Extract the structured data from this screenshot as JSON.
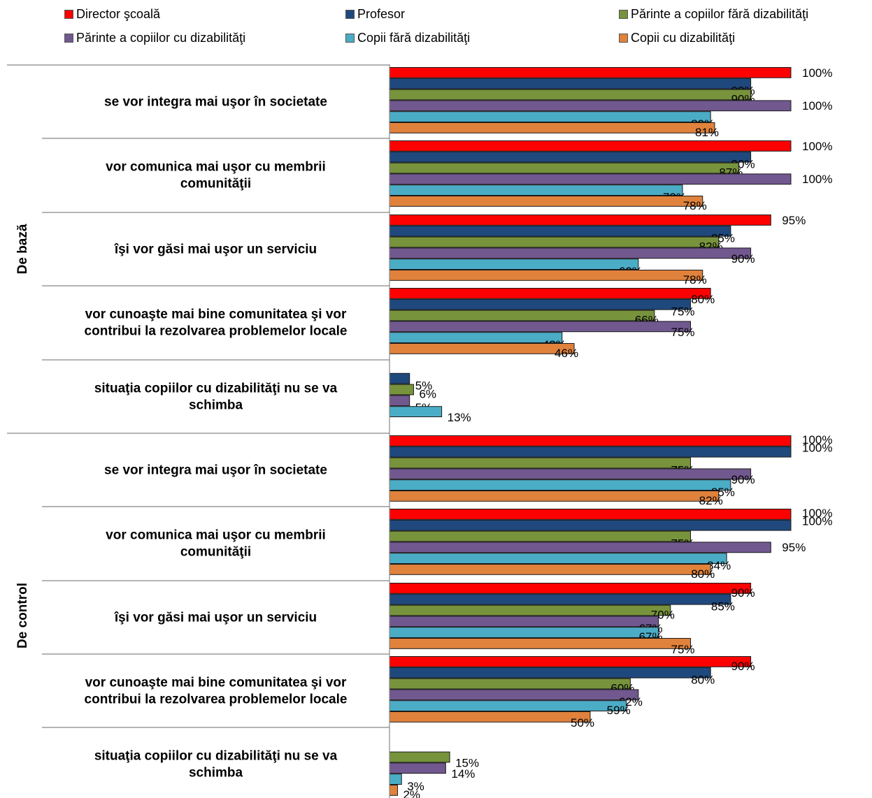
{
  "chart_data": {
    "type": "bar",
    "orientation": "horizontal",
    "legend_position": "top",
    "xlim": [
      0,
      100
    ],
    "value_suffix": "%",
    "series": [
      {
        "name": "Director şcoală",
        "color": "#FF0000"
      },
      {
        "name": "Profesor",
        "color": "#1F497D"
      },
      {
        "name": "Părinte a copiilor fără dizabilităţi",
        "color": "#77933C"
      },
      {
        "name": "Părinte a copiilor cu dizabilităţi",
        "color": "#71588F"
      },
      {
        "name": "Copii fără dizabilităţi",
        "color": "#4BACC6"
      },
      {
        "name": "Copii cu dizabilităţi",
        "color": "#E0823C"
      }
    ],
    "groups": [
      {
        "name": "De bază",
        "categories": [
          {
            "line1": "se vor integra mai uşor în societate",
            "line2": "",
            "values": [
              100,
              90,
              90,
              100,
              80,
              81
            ]
          },
          {
            "line1": "vor comunica mai uşor cu membrii",
            "line2": "comunităţii",
            "values": [
              100,
              90,
              87,
              100,
              73,
              78
            ]
          },
          {
            "line1": "îşi vor găsi mai uşor un serviciu",
            "line2": "",
            "values": [
              95,
              85,
              82,
              90,
              62,
              78
            ]
          },
          {
            "line1": "vor cunoaşte mai bine comunitatea şi vor",
            "line2": "contribui la rezolvarea problemelor locale",
            "values": [
              80,
              75,
              66,
              75,
              43,
              46
            ]
          },
          {
            "line1": "situaţia copiilor cu dizabilităţi nu se va",
            "line2": "schimba",
            "values": [
              null,
              5,
              6,
              5,
              13,
              null
            ]
          }
        ]
      },
      {
        "name": "De control",
        "categories": [
          {
            "line1": "se vor integra mai uşor în societate",
            "line2": "",
            "values": [
              100,
              100,
              75,
              90,
              85,
              82
            ]
          },
          {
            "line1": "vor comunica mai uşor cu membrii",
            "line2": "comunităţii",
            "values": [
              100,
              100,
              75,
              95,
              84,
              80
            ]
          },
          {
            "line1": "îşi vor găsi mai uşor un serviciu",
            "line2": "",
            "values": [
              90,
              85,
              70,
              67,
              67,
              75
            ]
          },
          {
            "line1": "vor cunoaşte mai bine comunitatea şi vor",
            "line2": "contribui la rezolvarea problemelor locale",
            "values": [
              90,
              80,
              60,
              62,
              59,
              50
            ]
          },
          {
            "line1": "situaţia copiilor cu dizabilităţi nu se va",
            "line2": "schimba",
            "values": [
              null,
              null,
              15,
              14,
              3,
              2
            ]
          }
        ]
      }
    ]
  }
}
